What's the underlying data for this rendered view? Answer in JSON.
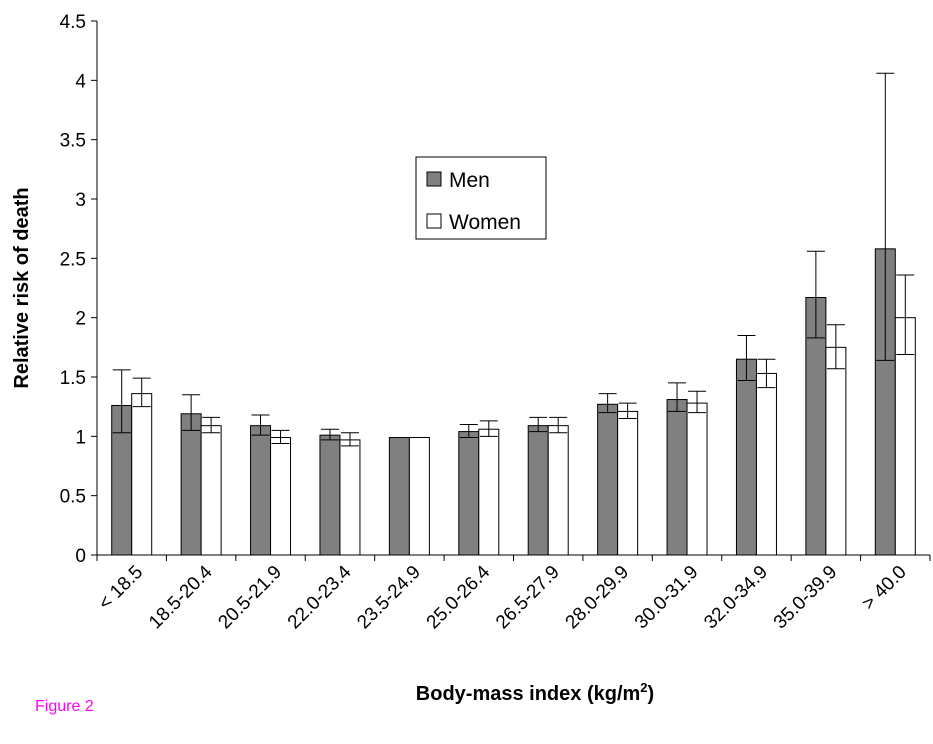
{
  "figure_label": "Figure 2",
  "chart_data": {
    "type": "bar",
    "ylabel": "Relative risk of death",
    "xlabel_main": "Body-mass index (kg/m",
    "xlabel_sup": "2",
    "xlabel_close": ")",
    "ylim": [
      0,
      4.5
    ],
    "yticks": [
      "0",
      "0.5",
      "1",
      "1.5",
      "2",
      "2.5",
      "3",
      "3.5",
      "4",
      "4.5"
    ],
    "grid": false,
    "legend_position": "upper-center",
    "categories": [
      "< 18.5",
      "18.5-20.4",
      "20.5-21.9",
      "22.0-23.4",
      "23.5-24.9",
      "25.0-26.4",
      "26.5-27.9",
      "28.0-29.9",
      "30.0-31.9",
      "32.0-34.9",
      "35.0-39.9",
      "> 40.0"
    ],
    "series": [
      {
        "name": "Men",
        "color": "#808080",
        "values": [
          1.26,
          1.19,
          1.09,
          1.01,
          0.99,
          1.04,
          1.09,
          1.27,
          1.31,
          1.65,
          2.17,
          2.58
        ],
        "error_low": [
          1.03,
          1.05,
          1.01,
          0.97,
          0.99,
          0.99,
          1.04,
          1.2,
          1.21,
          1.47,
          1.83,
          1.64
        ],
        "error_high": [
          1.56,
          1.35,
          1.18,
          1.06,
          0.99,
          1.1,
          1.16,
          1.36,
          1.45,
          1.85,
          2.56,
          4.06
        ]
      },
      {
        "name": "Women",
        "color": "#ffffff",
        "values": [
          1.36,
          1.09,
          0.99,
          0.97,
          0.99,
          1.06,
          1.09,
          1.21,
          1.28,
          1.53,
          1.75,
          2.0
        ],
        "error_low": [
          1.25,
          1.03,
          0.94,
          0.92,
          0.99,
          1.0,
          1.03,
          1.15,
          1.2,
          1.41,
          1.57,
          1.69
        ],
        "error_high": [
          1.49,
          1.16,
          1.05,
          1.03,
          0.99,
          1.13,
          1.16,
          1.28,
          1.38,
          1.65,
          1.94,
          2.36
        ]
      }
    ]
  }
}
